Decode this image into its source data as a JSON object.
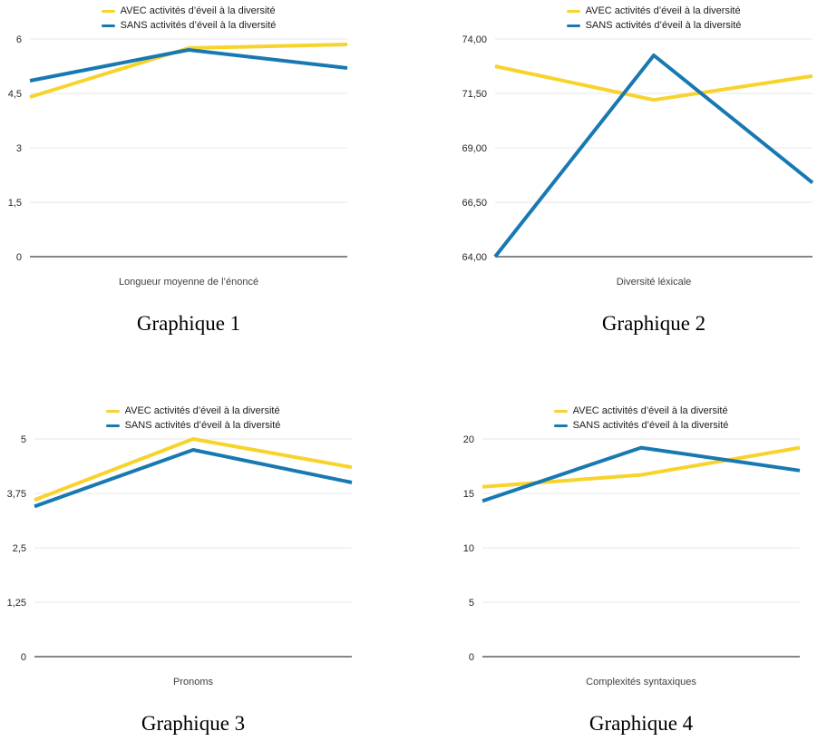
{
  "colors": {
    "avec": "#F8D32C",
    "sans": "#1879B2",
    "gridline": "#e7e7e7",
    "axis_line": "#5f5f5f",
    "tick_text": "#262626",
    "axis_title_text": "#3f3f3f"
  },
  "legend": {
    "avec_label": "AVEC activités d’éveil à la diversité",
    "sans_label": "SANS activités d’éveil à la diversité"
  },
  "chart_data": [
    {
      "type": "line",
      "caption": "Graphique 1",
      "xlabel": "Longueur moyenne de l’énoncé",
      "ylim": [
        0,
        6
      ],
      "yticks": [
        0,
        1.5,
        3,
        4.5,
        6
      ],
      "ytick_labels": [
        "0",
        "1,5",
        "3",
        "4,5",
        "6"
      ],
      "grid": true,
      "legend_position": "top",
      "series": [
        {
          "name": "AVEC activités d’éveil à la diversité",
          "color": "#F8D32C",
          "values": [
            4.4,
            5.75,
            5.85
          ]
        },
        {
          "name": "SANS activités d’éveil à la diversité",
          "color": "#1879B2",
          "values": [
            4.85,
            5.7,
            5.2
          ]
        }
      ]
    },
    {
      "type": "line",
      "caption": "Graphique 2",
      "xlabel": "Diversité léxicale",
      "ylim": [
        64,
        74
      ],
      "yticks": [
        64,
        66.5,
        69,
        71.5,
        74
      ],
      "ytick_labels": [
        "64,00",
        "66,50",
        "69,00",
        "71,50",
        "74,00"
      ],
      "grid": true,
      "legend_position": "top",
      "series": [
        {
          "name": "AVEC activités d’éveil à la diversité",
          "color": "#F8D32C",
          "values": [
            72.75,
            71.2,
            72.3
          ]
        },
        {
          "name": "SANS activités d’éveil à la diversité",
          "color": "#1879B2",
          "values": [
            64.0,
            73.25,
            67.4
          ]
        }
      ]
    },
    {
      "type": "line",
      "caption": "Graphique 3",
      "xlabel": "Pronoms",
      "ylim": [
        0,
        5
      ],
      "yticks": [
        0,
        1.25,
        2.5,
        3.75,
        5
      ],
      "ytick_labels": [
        "0",
        "1,25",
        "2,5",
        "3,75",
        "5"
      ],
      "grid": true,
      "legend_position": "top",
      "series": [
        {
          "name": "AVEC activités d’éveil à la diversité",
          "color": "#F8D32C",
          "values": [
            3.6,
            5.0,
            4.35
          ]
        },
        {
          "name": "SANS activités d’éveil à la diversité",
          "color": "#1879B2",
          "values": [
            3.45,
            4.75,
            4.0
          ]
        }
      ]
    },
    {
      "type": "line",
      "caption": "Graphique 4",
      "xlabel": "Complexités syntaxiques",
      "ylim": [
        0,
        20
      ],
      "yticks": [
        0,
        5,
        10,
        15,
        20
      ],
      "ytick_labels": [
        "0",
        "5",
        "10",
        "15",
        "20"
      ],
      "grid": true,
      "legend_position": "top",
      "series": [
        {
          "name": "AVEC activités d’éveil à la diversité",
          "color": "#F8D32C",
          "values": [
            15.6,
            16.7,
            19.2
          ]
        },
        {
          "name": "SANS activités d’éveil à la diversité",
          "color": "#1879B2",
          "values": [
            14.3,
            19.2,
            17.1
          ]
        }
      ]
    }
  ]
}
